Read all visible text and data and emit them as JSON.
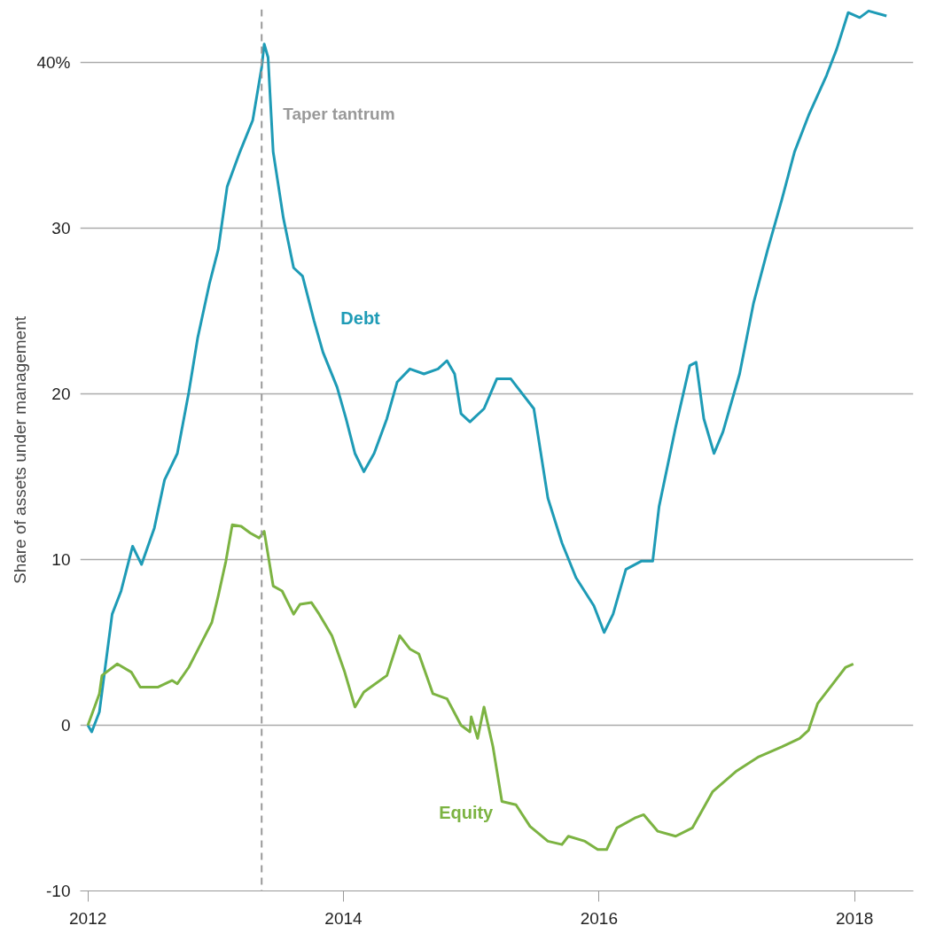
{
  "chart_data": {
    "type": "line",
    "ylabel": "Share of assets under management",
    "xlim": [
      2011.94,
      2018.46
    ],
    "ylim": [
      -10,
      43.2
    ],
    "xticks": [
      2012,
      2014,
      2016,
      2018
    ],
    "yticks": [
      -10,
      0,
      10,
      20,
      30,
      {
        "value": 40,
        "label": "40%"
      }
    ],
    "grid": "y",
    "line_style": "solid",
    "ref_lines": [
      {
        "axis": "x",
        "value": 2013.36,
        "label": "Taper tantrum",
        "color": "#999999",
        "line_style": "dashed"
      }
    ],
    "series": [
      {
        "name": "Debt",
        "color": "#1e9bb6",
        "x": [
          2012.0,
          2012.03,
          2012.09,
          2012.19,
          2012.26,
          2012.35,
          2012.42,
          2012.52,
          2012.6,
          2012.7,
          2012.79,
          2012.86,
          2012.95,
          2013.02,
          2013.09,
          2013.19,
          2013.29,
          2013.36,
          2013.38,
          2013.41,
          2013.45,
          2013.53,
          2013.61,
          2013.68,
          2013.77,
          2013.84,
          2013.95,
          2014.02,
          2014.09,
          2014.16,
          2014.24,
          2014.34,
          2014.42,
          2014.52,
          2014.63,
          2014.74,
          2014.81,
          2014.87,
          2014.92,
          2014.99,
          2015.1,
          2015.2,
          2015.31,
          2015.49,
          2015.6,
          2015.71,
          2015.82,
          2015.96,
          2016.04,
          2016.11,
          2016.21,
          2016.33,
          2016.42,
          2016.47,
          2016.6,
          2016.71,
          2016.76,
          2016.82,
          2016.9,
          2016.97,
          2017.1,
          2017.21,
          2017.32,
          2017.43,
          2017.53,
          2017.64,
          2017.78,
          2017.86,
          2017.95,
          2018.04,
          2018.11,
          2018.25
        ],
        "values": [
          0,
          -0.4,
          0.8,
          6.7,
          8.1,
          10.8,
          9.7,
          11.9,
          14.8,
          16.4,
          20.1,
          23.4,
          26.6,
          28.7,
          32.5,
          34.6,
          36.5,
          39.7,
          41.1,
          40.3,
          34.6,
          30.6,
          27.6,
          27.1,
          24.4,
          22.5,
          20.4,
          18.5,
          16.4,
          15.3,
          16.4,
          18.5,
          20.7,
          21.5,
          21.2,
          21.5,
          22.0,
          21.2,
          18.8,
          18.3,
          19.1,
          20.9,
          20.9,
          19.1,
          13.7,
          11.0,
          8.9,
          7.2,
          5.6,
          6.7,
          9.4,
          9.9,
          9.9,
          13.2,
          18.0,
          21.7,
          21.9,
          18.5,
          16.4,
          17.7,
          21.2,
          25.5,
          28.7,
          31.7,
          34.6,
          36.8,
          39.2,
          40.8,
          43.0,
          42.7,
          43.1,
          42.8
        ]
      },
      {
        "name": "Equity",
        "color": "#7cb342",
        "x": [
          2012.0,
          2012.09,
          2012.11,
          2012.23,
          2012.34,
          2012.41,
          2012.55,
          2012.66,
          2012.7,
          2012.79,
          2012.87,
          2012.97,
          2013.02,
          2013.08,
          2013.13,
          2013.2,
          2013.27,
          2013.34,
          2013.38,
          2013.45,
          2013.52,
          2013.61,
          2013.66,
          2013.75,
          2013.81,
          2013.91,
          2014.01,
          2014.09,
          2014.16,
          2014.34,
          2014.44,
          2014.52,
          2014.59,
          2014.7,
          2014.81,
          2014.92,
          2014.99,
          2015.0,
          2015.05,
          2015.1,
          2015.17,
          2015.24,
          2015.35,
          2015.46,
          2015.6,
          2015.71,
          2015.76,
          2015.89,
          2015.99,
          2016.06,
          2016.14,
          2016.28,
          2016.35,
          2016.46,
          2016.6,
          2016.73,
          2016.89,
          2017.07,
          2017.25,
          2017.43,
          2017.57,
          2017.64,
          2017.71,
          2017.82,
          2017.93,
          2017.99
        ],
        "values": [
          0,
          1.9,
          3.0,
          3.7,
          3.2,
          2.3,
          2.3,
          2.7,
          2.5,
          3.5,
          4.7,
          6.2,
          7.8,
          9.9,
          12.1,
          12.0,
          11.6,
          11.3,
          11.7,
          8.4,
          8.1,
          6.7,
          7.3,
          7.4,
          6.7,
          5.4,
          3.2,
          1.1,
          2.0,
          3.0,
          5.4,
          4.6,
          4.3,
          1.9,
          1.6,
          0,
          -0.4,
          0.5,
          -0.8,
          1.1,
          -1.3,
          -4.6,
          -4.8,
          -6.1,
          -7.0,
          -7.2,
          -6.7,
          -7.0,
          -7.5,
          -7.5,
          -6.2,
          -5.6,
          -5.4,
          -6.4,
          -6.7,
          -6.2,
          -4.0,
          -2.8,
          -1.9,
          -1.3,
          -0.8,
          -0.3,
          1.3,
          2.4,
          3.5,
          3.7
        ]
      }
    ]
  }
}
